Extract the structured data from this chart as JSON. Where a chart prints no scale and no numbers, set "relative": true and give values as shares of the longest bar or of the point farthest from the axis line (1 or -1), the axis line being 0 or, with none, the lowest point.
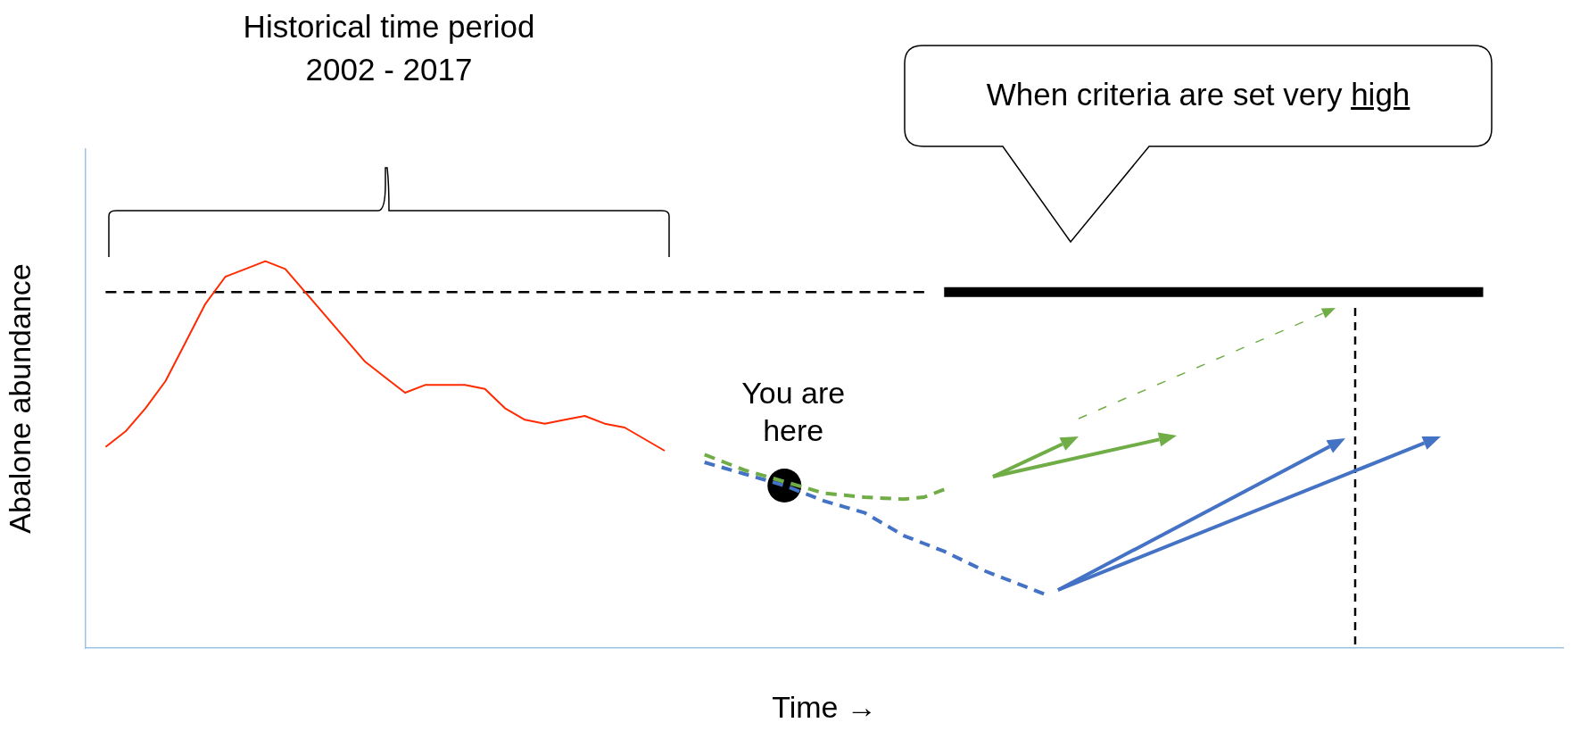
{
  "chart_data": {
    "type": "line",
    "title": "Historical time period\n2002 - 2017",
    "xlabel": "Time →",
    "ylabel": "Abalone abundance",
    "relative": true,
    "grid": false,
    "legend": false,
    "marker": "none",
    "annotations": [
      "You are here",
      "When criteria are set very high"
    ],
    "categories": [
      null,
      null,
      null,
      null,
      null,
      null,
      null,
      null,
      null,
      null,
      null,
      null,
      null,
      null,
      null,
      null,
      null,
      null,
      null,
      null,
      null,
      null,
      null,
      null,
      null,
      null,
      null,
      null,
      null,
      null,
      null,
      null,
      null,
      null,
      null,
      null,
      null,
      null,
      null,
      null,
      null,
      null,
      null,
      null,
      null,
      null,
      null,
      null,
      null,
      null,
      null,
      null,
      null,
      null,
      null,
      null,
      null,
      null,
      null,
      null,
      null,
      null,
      null,
      null,
      null,
      null,
      null,
      null,
      null,
      null,
      null,
      null,
      null,
      null,
      null
    ],
    "series": [
      {
        "color": "#ff2a00",
        "line_style": "solid",
        "values": [
          null,
          0.52,
          0.56,
          0.62,
          0.69,
          0.79,
          0.89,
          0.96,
          0.98,
          1.0,
          0.98,
          0.92,
          0.86,
          0.8,
          0.74,
          0.7,
          0.66,
          0.68,
          0.68,
          0.68,
          0.67,
          0.62,
          0.59,
          0.58,
          0.59,
          0.6,
          0.58,
          0.57,
          0.54,
          0.51,
          null,
          null,
          null,
          null,
          null,
          null,
          null,
          null,
          null,
          null,
          null,
          null,
          null,
          null,
          null,
          null,
          null,
          null,
          null,
          null,
          null,
          null,
          null,
          null,
          null,
          null,
          null,
          null,
          null,
          null,
          null,
          null,
          null,
          null,
          null,
          null,
          null,
          null,
          null,
          null,
          null,
          null,
          null,
          null,
          null
        ]
      },
      {
        "color": "#70ad47",
        "line_style": "dashed",
        "values": [
          null,
          null,
          null,
          null,
          null,
          null,
          null,
          null,
          null,
          null,
          null,
          null,
          null,
          null,
          null,
          null,
          null,
          null,
          null,
          null,
          null,
          null,
          null,
          null,
          null,
          null,
          null,
          null,
          null,
          null,
          null,
          0.5,
          0.48,
          0.46,
          0.445,
          0.43,
          0.415,
          0.4,
          0.395,
          0.39,
          0.387,
          0.385,
          0.39,
          0.41,
          null,
          null,
          null,
          null,
          null,
          null,
          null,
          null,
          null,
          null,
          null,
          null,
          null,
          null,
          null,
          null,
          null,
          null,
          null,
          null,
          null,
          null,
          null,
          null,
          null,
          null,
          null,
          null,
          null,
          null,
          null
        ]
      },
      {
        "color": "#4472c4",
        "line_style": "dashed",
        "values": [
          null,
          null,
          null,
          null,
          null,
          null,
          null,
          null,
          null,
          null,
          null,
          null,
          null,
          null,
          null,
          null,
          null,
          null,
          null,
          null,
          null,
          null,
          null,
          null,
          null,
          null,
          null,
          null,
          null,
          null,
          null,
          0.48,
          0.465,
          0.45,
          0.435,
          0.42,
          0.4,
          0.38,
          0.365,
          0.35,
          0.32,
          0.29,
          0.27,
          0.25,
          0.225,
          0.2,
          0.18,
          0.16,
          0.14,
          null,
          null,
          null,
          null,
          null,
          null,
          null,
          null,
          null,
          null,
          null,
          null,
          null,
          null,
          null,
          null,
          null,
          null,
          null,
          null,
          null,
          null,
          null,
          null,
          null,
          null
        ]
      },
      {
        "color": "#000000",
        "marker": "circle",
        "values": [
          null,
          null,
          null,
          null,
          null,
          null,
          null,
          null,
          null,
          null,
          null,
          null,
          null,
          null,
          null,
          null,
          null,
          null,
          null,
          null,
          null,
          null,
          null,
          null,
          null,
          null,
          null,
          null,
          null,
          null,
          null,
          null,
          null,
          null,
          null,
          0.42,
          null,
          null,
          null,
          null,
          null,
          null,
          null,
          null,
          null,
          null,
          null,
          null,
          null,
          null,
          null,
          null,
          null,
          null,
          null,
          null,
          null,
          null,
          null,
          null,
          null,
          null,
          null,
          null,
          null,
          null,
          null,
          null,
          null,
          null,
          null,
          null,
          null,
          null,
          null
        ]
      },
      {
        "color": "#000000",
        "line_style": "dashed",
        "values": [
          null,
          0.92,
          null,
          null,
          null,
          null,
          null,
          null,
          null,
          null,
          null,
          null,
          null,
          null,
          null,
          null,
          null,
          null,
          null,
          null,
          null,
          null,
          null,
          null,
          null,
          null,
          null,
          null,
          null,
          null,
          null,
          null,
          null,
          null,
          null,
          null,
          null,
          null,
          null,
          null,
          null,
          null,
          0.92,
          null,
          null,
          null,
          null,
          null,
          null,
          null,
          null,
          null,
          null,
          null,
          null,
          null,
          null,
          null,
          null,
          null,
          null,
          null,
          null,
          null,
          null,
          null,
          null,
          null,
          null,
          null,
          null,
          null,
          null,
          null,
          null
        ]
      },
      {
        "color": "#000000",
        "line_style": "solid",
        "values": [
          null,
          null,
          null,
          null,
          null,
          null,
          null,
          null,
          null,
          null,
          null,
          null,
          null,
          null,
          null,
          null,
          null,
          null,
          null,
          null,
          null,
          null,
          null,
          null,
          null,
          null,
          null,
          null,
          null,
          null,
          null,
          null,
          null,
          null,
          null,
          null,
          null,
          null,
          null,
          null,
          null,
          null,
          null,
          0.92,
          null,
          null,
          null,
          null,
          null,
          null,
          null,
          null,
          null,
          null,
          null,
          null,
          null,
          null,
          null,
          null,
          null,
          null,
          null,
          null,
          null,
          null,
          null,
          null,
          null,
          null,
          0.92,
          null,
          null,
          null,
          null
        ]
      }
    ]
  }
}
